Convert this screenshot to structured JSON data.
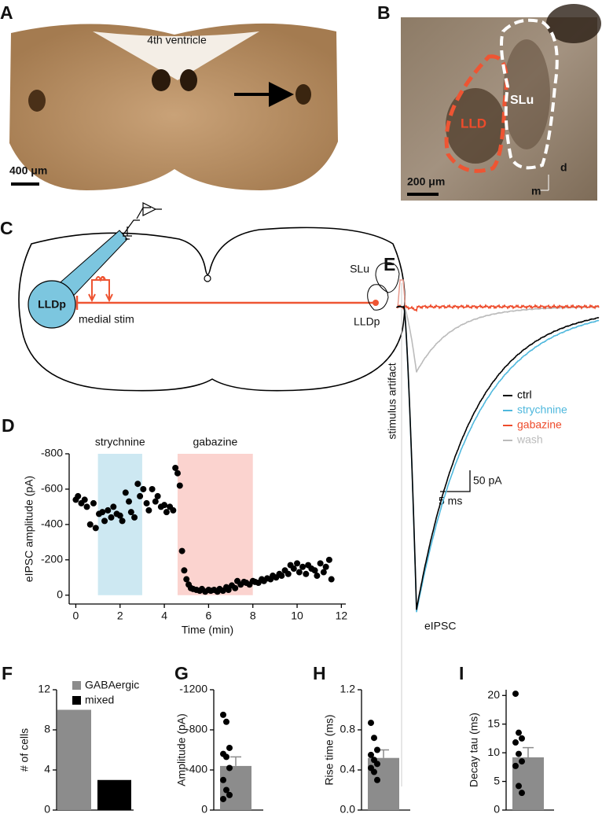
{
  "panel_labels": [
    "A",
    "B",
    "C",
    "D",
    "E",
    "F",
    "G",
    "H",
    "I"
  ],
  "panel_a": {
    "ventricle_label": "4th ventricle",
    "scale_bar": "400 μm"
  },
  "panel_b": {
    "region_labels": [
      "LLD",
      "SLu"
    ],
    "scale_bar": "200 μm",
    "axis_labels": [
      "d",
      "m"
    ]
  },
  "panel_c": {
    "labels": [
      "LLDp",
      "medial stim",
      "SLu",
      "LLDp"
    ]
  },
  "panel_e": {
    "artifact_label": "stimulus artifact",
    "peak_label": "eIPSC",
    "legend": [
      {
        "name": "ctrl",
        "color": "#000000"
      },
      {
        "name": "strychnine",
        "color": "#4fb8dd"
      },
      {
        "name": "gabazine",
        "color": "#ee4b2b"
      },
      {
        "name": "wash",
        "color": "#bbbbbb"
      }
    ],
    "scale_bars": [
      "50 pA",
      "5 ms"
    ]
  },
  "chart_data": [
    {
      "type": "scatter",
      "ylabel": "eIPSC amplitude (pA)",
      "xlabel": "Time (min)",
      "color": "#000000",
      "x": [
        0,
        0.1,
        0.25,
        0.4,
        0.5,
        0.65,
        0.8,
        0.9,
        1.05,
        1.2,
        1.3,
        1.45,
        1.6,
        1.7,
        1.85,
        2.0,
        2.1,
        2.25,
        2.4,
        2.5,
        2.65,
        2.8,
        2.9,
        3.05,
        3.2,
        3.3,
        3.45,
        3.6,
        3.7,
        3.85,
        4.0,
        4.1,
        4.25,
        4.4,
        4.5,
        4.6,
        4.7,
        4.8,
        4.9,
        5.0,
        5.1,
        5.2,
        5.3,
        5.45,
        5.6,
        5.7,
        5.85,
        6.0,
        6.1,
        6.25,
        6.4,
        6.5,
        6.65,
        6.8,
        6.9,
        7.05,
        7.2,
        7.3,
        7.45,
        7.6,
        7.7,
        7.85,
        8.0,
        8.1,
        8.25,
        8.4,
        8.5,
        8.65,
        8.8,
        8.9,
        9.05,
        9.2,
        9.3,
        9.45,
        9.6,
        9.7,
        9.85,
        10.0,
        10.1,
        10.25,
        10.4,
        10.5,
        10.65,
        10.8,
        10.9,
        11.05,
        11.2,
        11.3,
        11.45,
        11.55
      ],
      "values": [
        -540,
        -560,
        -520,
        -540,
        -500,
        -400,
        -520,
        -380,
        -460,
        -470,
        -420,
        -480,
        -440,
        -500,
        -460,
        -450,
        -420,
        -580,
        -530,
        -470,
        -440,
        -630,
        -560,
        -600,
        -520,
        -480,
        -600,
        -530,
        -560,
        -500,
        -510,
        -470,
        -500,
        -480,
        -720,
        -690,
        -620,
        -250,
        -140,
        -90,
        -60,
        -40,
        -35,
        -30,
        -25,
        -35,
        -20,
        -30,
        -25,
        -30,
        -20,
        -35,
        -25,
        -45,
        -30,
        -55,
        -40,
        -80,
        -60,
        -75,
        -70,
        -60,
        -80,
        -75,
        -70,
        -90,
        -80,
        -95,
        -90,
        -110,
        -100,
        -120,
        -110,
        -140,
        -120,
        -170,
        -150,
        -180,
        -130,
        -160,
        -120,
        -170,
        -150,
        -140,
        -110,
        -180,
        -130,
        -160,
        -200,
        -90
      ],
      "spans": [
        {
          "label": "strychnine",
          "x": [
            1,
            3
          ],
          "color": "#cde8f2"
        },
        {
          "label": "gabazine",
          "x": [
            4.6,
            8
          ],
          "color": "#fbd3cf"
        }
      ],
      "xlim": [
        -0.3,
        12.2
      ],
      "xticks": [
        0,
        2,
        4,
        6,
        8,
        10,
        12
      ],
      "ylim": [
        50,
        -800
      ],
      "yticks": [
        0,
        -200,
        -400,
        -600,
        -800
      ]
    },
    {
      "type": "bar",
      "ylabel": "# of cells",
      "series": [
        {
          "name": "GABAergic",
          "color": "#8c8c8c",
          "values": [
            10
          ]
        },
        {
          "name": "mixed",
          "color": "#000000",
          "values": [
            3
          ]
        }
      ],
      "ylim": [
        0,
        12
      ],
      "yticks": [
        0,
        4,
        8,
        12
      ]
    },
    {
      "type": "bar",
      "ylabel": "Amplitude (pA)",
      "color": "#8c8c8c",
      "values": [
        -440
      ],
      "errors": [
        90
      ],
      "points": [
        -950,
        -880,
        -620,
        -560,
        -530,
        -420,
        -300,
        -200,
        -150,
        -110
      ],
      "ylim": [
        0,
        -1200
      ],
      "yticks": [
        0,
        -400,
        -800,
        -1200
      ]
    },
    {
      "type": "bar",
      "ylabel": "Rise time (ms)",
      "color": "#8c8c8c",
      "values": [
        0.52
      ],
      "errors": [
        0.08
      ],
      "points": [
        0.87,
        0.72,
        0.6,
        0.55,
        0.5,
        0.46,
        0.42,
        0.38,
        0.3
      ],
      "ylim": [
        0,
        1.2
      ],
      "yticks": [
        {
          "value": 0,
          "label": "0.0"
        },
        0.4,
        0.8,
        1.2
      ]
    },
    {
      "type": "bar",
      "ylabel": "Decay tau (ms)",
      "color": "#8c8c8c",
      "values": [
        9.2
      ],
      "errors": [
        1.7
      ],
      "points": [
        20.3,
        13.5,
        12.5,
        11.8,
        9.8,
        8.5,
        7.7,
        4.2,
        3.0
      ],
      "ylim": [
        0,
        21
      ],
      "yticks": [
        0,
        5,
        10,
        15,
        20
      ]
    }
  ]
}
